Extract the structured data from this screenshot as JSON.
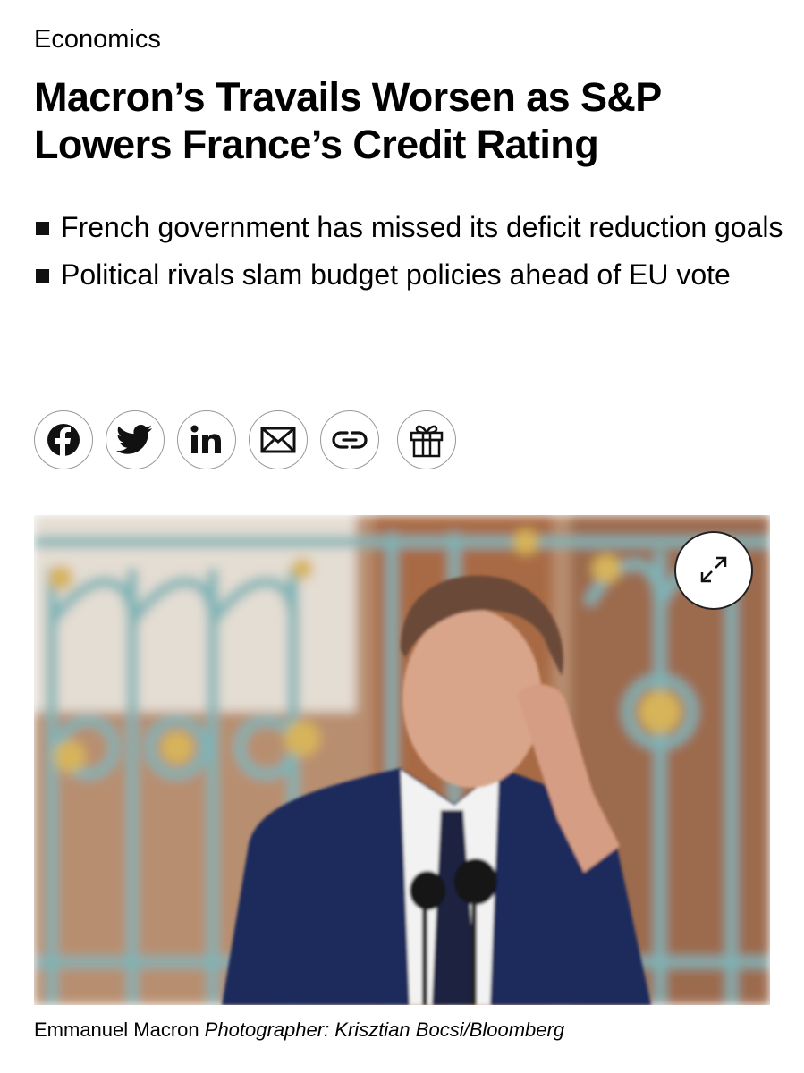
{
  "section": "Economics",
  "headline": "Macron’s Travails Worsen as S&P Lowers France’s Credit Rating",
  "bullets": [
    "French government has missed its deficit reduction goals",
    "Political rivals slam budget policies ahead of EU vote"
  ],
  "caption": {
    "subject": "Emmanuel Macron",
    "credit": "Photographer: Krisztian Bocsi/Bloomberg"
  }
}
